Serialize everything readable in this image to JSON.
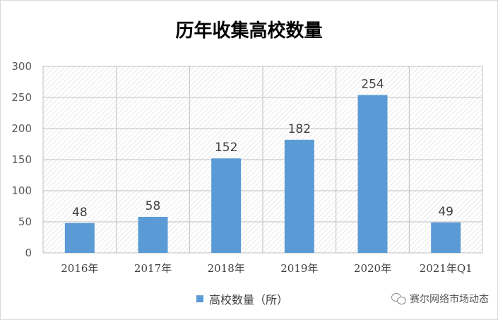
{
  "chart_data": {
    "type": "bar",
    "title": "历年收集高校数量",
    "categories": [
      "2016年",
      "2017年",
      "2018年",
      "2019年",
      "2020年",
      "2021年Q1"
    ],
    "series": [
      {
        "name": "高校数量（所）",
        "values": [
          48,
          58,
          152,
          182,
          254,
          49
        ],
        "color": "#5b9bd5"
      }
    ],
    "ylim": [
      0,
      300
    ],
    "yticks": [
      0,
      50,
      100,
      150,
      200,
      250,
      300
    ],
    "grid": true,
    "legend_position": "bottom"
  },
  "watermark": {
    "text": "赛尔网络市场动态",
    "icon": "wechat-icon"
  }
}
